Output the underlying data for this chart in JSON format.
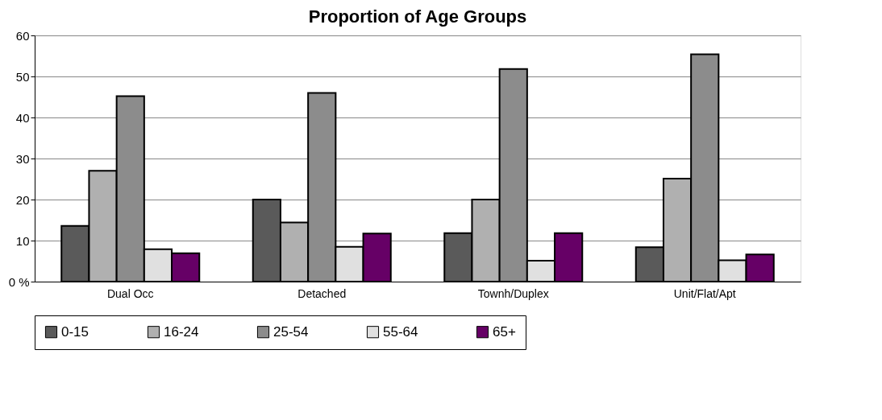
{
  "chart_data": {
    "type": "bar",
    "title": "Proportion of Age Groups",
    "categories": [
      "Dual Occ",
      "Detached",
      "Townh/Duplex",
      "Unit/Flat/Apt"
    ],
    "series": [
      {
        "name": "0-15",
        "color": "#5a5a5a",
        "values": [
          13.6,
          20,
          11.8,
          8.4
        ]
      },
      {
        "name": "16-24",
        "color": "#b0b0b0",
        "values": [
          27,
          14.4,
          20,
          25.1
        ]
      },
      {
        "name": "25-54",
        "color": "#8c8c8c",
        "values": [
          45.2,
          46,
          51.8,
          55.4
        ]
      },
      {
        "name": "55-64",
        "color": "#e0e0e0",
        "values": [
          7.9,
          8.5,
          5.1,
          5.2
        ]
      },
      {
        "name": "65+",
        "color": "#660066",
        "values": [
          6.9,
          11.7,
          11.8,
          6.6
        ]
      }
    ],
    "ylim": [
      0,
      60
    ],
    "yticks": [
      {
        "value": 0,
        "label": "0 %"
      },
      10,
      20,
      30,
      40,
      50,
      60
    ],
    "grid": "y",
    "legend": "bottom"
  }
}
